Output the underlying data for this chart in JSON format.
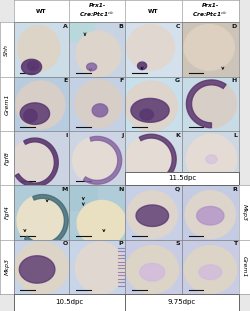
{
  "col_headers_left": [
    "WT",
    "Prx1-\nCre:Ptc1$^{c/c}$"
  ],
  "col_headers_right": [
    "WT",
    "Prx1-\nCre:Ptc1$^{c/c}$"
  ],
  "row_labels_left": [
    "Shh",
    "Grem1",
    "Fgf8",
    "Fgf4",
    "Mkp3"
  ],
  "right_labels_rows34": [
    "Mkp3",
    "Grem1"
  ],
  "bottom_left": "10.5dpc",
  "bottom_right_mid": "11.5dpc",
  "bottom_right_bot": "9.75dpc",
  "panel_order_left": [
    [
      "A",
      "B"
    ],
    [
      "E",
      "F"
    ],
    [
      "I",
      "J"
    ],
    [
      "M",
      "N"
    ],
    [
      "O",
      "P"
    ]
  ],
  "panel_order_right_top": [
    [
      "C",
      "D"
    ],
    [
      "G",
      "H"
    ],
    [
      "K",
      "L"
    ]
  ],
  "panel_order_right_bot": [
    [
      "Q",
      "R"
    ],
    [
      "S",
      "T"
    ]
  ],
  "bg_light_blue": "#cde4ec",
  "bg_cream": "#e8ddd0",
  "bg_tan": "#d8cfc0",
  "bg_white_blue": "#e0edf5",
  "bg_teal": "#b8d8dc",
  "panel_bg": {
    "A": "#ccdae8",
    "B": "#c8d4e4",
    "E": "#c0cce0",
    "F": "#c4d0e4",
    "I": "#ccd4e4",
    "J": "#cdd5e5",
    "M": "#c0d8e8",
    "N": "#bcd4e4",
    "O": "#c8d4e8",
    "P": "#c8d4e8",
    "C": "#d4e0ec",
    "D": "#ccc4b8",
    "G": "#c8e0ec",
    "H": "#c8dce8",
    "K": "#d0dce8",
    "L": "#ccd8e4",
    "Q": "#c8d0e8",
    "R": "#c4cce4",
    "S": "#c8cce4",
    "T": "#c8cce4"
  },
  "purple_dark": "#5a3870",
  "purple_mid": "#8060a0",
  "purple_light": "#b090c8",
  "purple_pale": "#d0b8e0",
  "blue_teal": "#70a8b8",
  "outline_color": "#888888",
  "text_dark": "#111111",
  "white": "#ffffff",
  "scale_bar": "#111111"
}
